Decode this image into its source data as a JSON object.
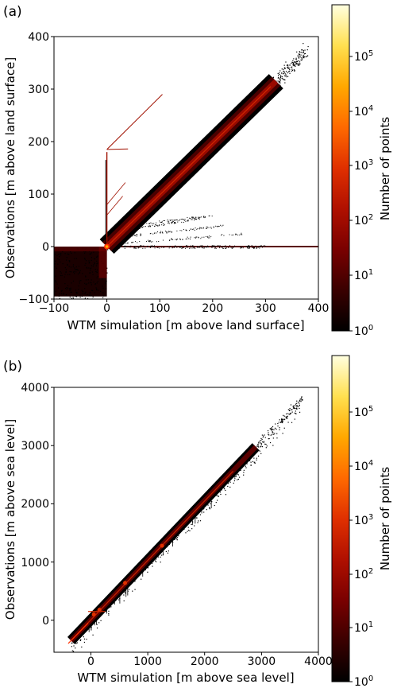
{
  "colors": {
    "cmap": [
      "#000000",
      "#3a0000",
      "#7a0000",
      "#b01000",
      "#e03000",
      "#ff6a00",
      "#ffa800",
      "#ffe050",
      "#ffffe0"
    ],
    "scatter": "#000000",
    "core": "#7a0000",
    "hot": "#ff3000"
  },
  "chart_data": [
    {
      "type": "heatmap",
      "panel_label": "(a)",
      "xlabel": "WTM simulation [m above land surface]",
      "ylabel": "Observations [m above land surface]",
      "xlim": [
        -100,
        400
      ],
      "ylim": [
        -100,
        400
      ],
      "xticks": [
        "−100",
        "0",
        "100",
        "200",
        "300",
        "400"
      ],
      "yticks": [
        "−100",
        "0",
        "100",
        "200",
        "300",
        "400"
      ],
      "colorbar": {
        "label": "Number of points",
        "scale": "log",
        "min": 1,
        "max": 100000,
        "ticks": [
          "10",
          "10",
          "10",
          "10",
          "10",
          "10"
        ],
        "tick_exponents": [
          "0",
          "1",
          "2",
          "3",
          "4",
          "5"
        ]
      },
      "dense_band": {
        "x": [
          0,
          320
        ],
        "y": [
          0,
          315
        ]
      },
      "upper_band": {
        "x": [
          0,
          380
        ],
        "y": [
          0,
          375
        ]
      },
      "features": {
        "vertical_streak_x": 0,
        "vertical_streak_y": [
          0,
          180
        ],
        "diagonal_streak": {
          "x": [
            0,
            105
          ],
          "y": [
            185,
            290
          ]
        },
        "horizontal_band_y": 0,
        "negative_block": {
          "x": [
            -100,
            0
          ],
          "y": [
            -95,
            0
          ]
        }
      }
    },
    {
      "type": "heatmap",
      "panel_label": "(b)",
      "xlabel": "WTM simulation [m above sea level]",
      "ylabel": "Observations [m above sea level]",
      "xlim": [
        -650,
        4000
      ],
      "ylim": [
        -550,
        4000
      ],
      "xticks": [
        "0",
        "1000",
        "2000",
        "3000",
        "4000"
      ],
      "yticks": [
        "0",
        "1000",
        "2000",
        "3000",
        "4000"
      ],
      "colorbar": {
        "label": "Number of points",
        "scale": "log",
        "min": 1,
        "max": 100000,
        "ticks": [
          "10",
          "10",
          "10",
          "10",
          "10",
          "10"
        ],
        "tick_exponents": [
          "0",
          "1",
          "2",
          "3",
          "4",
          "5"
        ]
      },
      "band": {
        "x": [
          -350,
          3700
        ],
        "y": [
          -350,
          3800
        ]
      }
    }
  ]
}
